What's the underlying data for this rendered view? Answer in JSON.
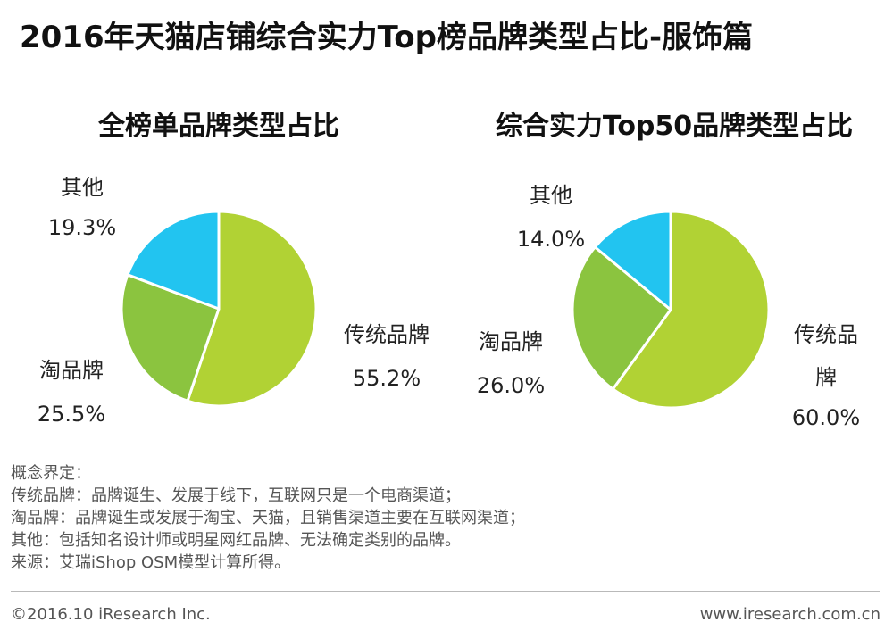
{
  "title": "2016年天猫店铺综合实力Top榜品牌类型占比-服饰篇",
  "colors": {
    "traditional": "#b1d234",
    "tao": "#8bc43f",
    "other": "#22c4f0"
  },
  "chart_data": [
    {
      "type": "pie",
      "title": "全榜单品牌类型占比",
      "slices": [
        {
          "label": "传统品牌",
          "value": 55.2,
          "value_text": "55.2%",
          "color": "#b1d234"
        },
        {
          "label": "淘品牌",
          "value": 25.5,
          "value_text": "25.5%",
          "color": "#8bc43f"
        },
        {
          "label": "其他",
          "value": 19.3,
          "value_text": "19.3%",
          "color": "#22c4f0"
        }
      ]
    },
    {
      "type": "pie",
      "title": "综合实力Top50品牌类型占比",
      "slices": [
        {
          "label": "传统品牌",
          "label_lines": [
            "传统品",
            "牌"
          ],
          "value": 60.0,
          "value_text": "60.0%",
          "color": "#b1d234"
        },
        {
          "label": "淘品牌",
          "value": 26.0,
          "value_text": "26.0%",
          "color": "#8bc43f"
        },
        {
          "label": "其他",
          "value": 14.0,
          "value_text": "14.0%",
          "color": "#22c4f0"
        }
      ]
    }
  ],
  "notes": [
    "概念界定：",
    "传统品牌：品牌诞生、发展于线下，互联网只是一个电商渠道；",
    "淘品牌：品牌诞生或发展于淘宝、天猫，且销售渠道主要在互联网渠道；",
    "其他：包括知名设计师或明星网红品牌、无法确定类别的品牌。",
    "来源：艾瑞iShop OSM模型计算所得。"
  ],
  "footer": {
    "copyright": "©2016.10 iResearch Inc.",
    "website": "www.iresearch.com.cn"
  }
}
